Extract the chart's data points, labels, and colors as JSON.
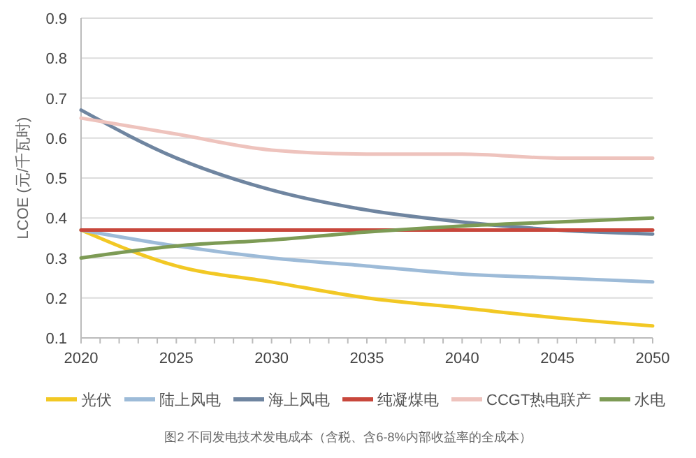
{
  "chart_data": {
    "type": "line",
    "ylabel": "LCOE (元/千瓦时)",
    "x": [
      2020,
      2025,
      2030,
      2035,
      2040,
      2045,
      2050
    ],
    "xlim": [
      2020,
      2050
    ],
    "xticks": [
      2020,
      2025,
      2030,
      2035,
      2040,
      2045,
      2050
    ],
    "ylim": [
      0.1,
      0.9
    ],
    "yticks": [
      {
        "value": 0.1,
        "label": "0.1"
      },
      {
        "value": 0.2,
        "label": "0.2"
      },
      {
        "value": 0.3,
        "label": "0.3"
      },
      {
        "value": 0.4,
        "label": "0.4"
      },
      {
        "value": 0.5,
        "label": "0.5"
      },
      {
        "value": 0.6,
        "label": "0.6"
      },
      {
        "value": 0.7,
        "label": "0.7"
      },
      {
        "value": 0.8,
        "label": "0.8"
      },
      {
        "value": 0.9,
        "label": "0.9"
      }
    ],
    "grid": "y",
    "legend": "bottom",
    "marker": "none",
    "line_style": "solid",
    "series": [
      {
        "name": "光伏",
        "color": "#f2c824",
        "values": [
          0.37,
          0.28,
          0.24,
          0.2,
          0.175,
          0.15,
          0.13
        ]
      },
      {
        "name": "陆上风电",
        "color": "#9dbbd8",
        "values": [
          0.37,
          0.33,
          0.3,
          0.28,
          0.26,
          0.25,
          0.24
        ]
      },
      {
        "name": "海上风电",
        "color": "#6f85a0",
        "values": [
          0.67,
          0.55,
          0.47,
          0.42,
          0.39,
          0.37,
          0.36
        ]
      },
      {
        "name": "纯凝煤电",
        "color": "#c8473c",
        "values": [
          0.37,
          0.37,
          0.37,
          0.37,
          0.37,
          0.37,
          0.37
        ]
      },
      {
        "name": "CCGT热电联产",
        "color": "#eec3bd",
        "values": [
          0.65,
          0.61,
          0.57,
          0.56,
          0.56,
          0.55,
          0.55
        ]
      },
      {
        "name": "水电",
        "color": "#7d9b55",
        "values": [
          0.3,
          0.33,
          0.345,
          0.365,
          0.38,
          0.39,
          0.4
        ]
      }
    ],
    "annotations": [
      "图2 不同发电技术发电成本（含税、含6-8%内部收益率的全成本）"
    ]
  }
}
